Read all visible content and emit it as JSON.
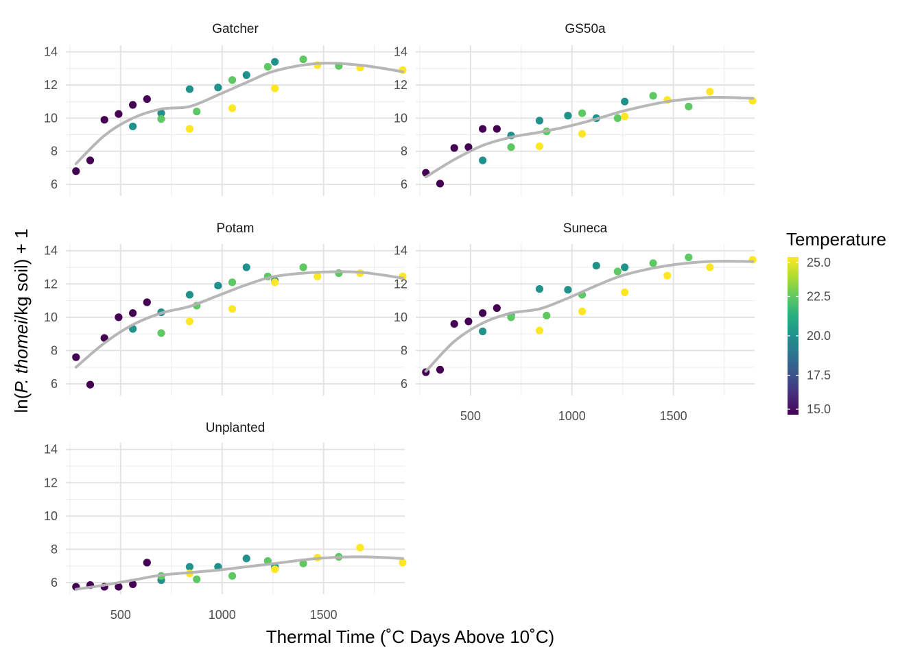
{
  "chart_data": {
    "type": "scatter",
    "facets": [
      "Gatcher",
      "GS50a",
      "Potam",
      "Suneca",
      "Unplanted"
    ],
    "xlabel": "Thermal Time (˚C Days Above 10˚C)",
    "ylabel": {
      "prefix": "ln(",
      "italic": "P. thomei",
      "suffix": "/kg soil) + 1"
    },
    "x_ticks": [
      500,
      1000,
      1500
    ],
    "x_tick_labels": [
      "500",
      "1000",
      "1500"
    ],
    "y_ticks": [
      6,
      8,
      10,
      12,
      14
    ],
    "y_tick_labels": [
      "6",
      "8",
      "10",
      "12",
      "14"
    ],
    "xlim": [
      230,
      1900
    ],
    "ylim": [
      5.3,
      14.4
    ],
    "grid": true,
    "legend": {
      "title": "Temperature",
      "position": "right",
      "range": [
        15,
        25
      ],
      "ticks": [
        15,
        17.5,
        20,
        22.5,
        25
      ],
      "tick_labels": [
        "15.0",
        "17.5",
        "20.0",
        "22.5",
        "25.0"
      ],
      "colors": [
        "#440154",
        "#472d7b",
        "#3b528b",
        "#2c728e",
        "#21918c",
        "#28ae80",
        "#5ec962",
        "#addc30",
        "#fde725"
      ]
    },
    "smooth_color": "#b3b3b3",
    "panels": [
      {
        "name": "Gatcher",
        "points": [
          {
            "x": 280,
            "y": 6.8,
            "t": 15
          },
          {
            "x": 350,
            "y": 7.45,
            "t": 15
          },
          {
            "x": 420,
            "y": 9.9,
            "t": 15
          },
          {
            "x": 490,
            "y": 10.25,
            "t": 15
          },
          {
            "x": 560,
            "y": 10.8,
            "t": 15
          },
          {
            "x": 630,
            "y": 11.15,
            "t": 15
          },
          {
            "x": 560,
            "y": 9.5,
            "t": 20
          },
          {
            "x": 700,
            "y": 10.3,
            "t": 20
          },
          {
            "x": 840,
            "y": 11.75,
            "t": 20
          },
          {
            "x": 980,
            "y": 11.85,
            "t": 20
          },
          {
            "x": 1120,
            "y": 12.6,
            "t": 20
          },
          {
            "x": 1260,
            "y": 13.4,
            "t": 20
          },
          {
            "x": 700,
            "y": 9.95,
            "t": 22.5
          },
          {
            "x": 875,
            "y": 10.4,
            "t": 22.5
          },
          {
            "x": 1050,
            "y": 12.3,
            "t": 22.5
          },
          {
            "x": 1225,
            "y": 13.1,
            "t": 22.5
          },
          {
            "x": 1400,
            "y": 13.55,
            "t": 22.5
          },
          {
            "x": 1575,
            "y": 13.15,
            "t": 22.5
          },
          {
            "x": 840,
            "y": 9.35,
            "t": 25
          },
          {
            "x": 1050,
            "y": 10.6,
            "t": 25
          },
          {
            "x": 1260,
            "y": 11.8,
            "t": 25
          },
          {
            "x": 1470,
            "y": 13.2,
            "t": 25
          },
          {
            "x": 1680,
            "y": 13.05,
            "t": 25
          },
          {
            "x": 1890,
            "y": 12.9,
            "t": 25
          }
        ],
        "smooth": [
          [
            280,
            7.25
          ],
          [
            420,
            8.95
          ],
          [
            560,
            10.0
          ],
          [
            700,
            10.55
          ],
          [
            840,
            10.7
          ],
          [
            980,
            11.4
          ],
          [
            1120,
            12.15
          ],
          [
            1260,
            12.85
          ],
          [
            1470,
            13.3
          ],
          [
            1680,
            13.2
          ],
          [
            1890,
            12.8
          ]
        ]
      },
      {
        "name": "GS50a",
        "points": [
          {
            "x": 280,
            "y": 6.7,
            "t": 15
          },
          {
            "x": 350,
            "y": 6.05,
            "t": 15
          },
          {
            "x": 420,
            "y": 8.2,
            "t": 15
          },
          {
            "x": 490,
            "y": 8.25,
            "t": 15
          },
          {
            "x": 560,
            "y": 9.35,
            "t": 15
          },
          {
            "x": 630,
            "y": 9.35,
            "t": 15
          },
          {
            "x": 560,
            "y": 7.45,
            "t": 20
          },
          {
            "x": 700,
            "y": 8.95,
            "t": 20
          },
          {
            "x": 840,
            "y": 9.85,
            "t": 20
          },
          {
            "x": 980,
            "y": 10.15,
            "t": 20
          },
          {
            "x": 1120,
            "y": 10.0,
            "t": 20
          },
          {
            "x": 1260,
            "y": 11.0,
            "t": 20
          },
          {
            "x": 700,
            "y": 8.25,
            "t": 22.5
          },
          {
            "x": 875,
            "y": 9.2,
            "t": 22.5
          },
          {
            "x": 1050,
            "y": 10.3,
            "t": 22.5
          },
          {
            "x": 1225,
            "y": 10.0,
            "t": 22.5
          },
          {
            "x": 1400,
            "y": 11.35,
            "t": 22.5
          },
          {
            "x": 1575,
            "y": 10.7,
            "t": 22.5
          },
          {
            "x": 840,
            "y": 8.3,
            "t": 25
          },
          {
            "x": 1050,
            "y": 9.05,
            "t": 25
          },
          {
            "x": 1260,
            "y": 10.1,
            "t": 25
          },
          {
            "x": 1470,
            "y": 11.1,
            "t": 25
          },
          {
            "x": 1680,
            "y": 11.6,
            "t": 25
          },
          {
            "x": 1890,
            "y": 11.05,
            "t": 25
          }
        ],
        "smooth": [
          [
            280,
            6.45
          ],
          [
            420,
            7.5
          ],
          [
            560,
            8.35
          ],
          [
            700,
            8.85
          ],
          [
            840,
            9.15
          ],
          [
            980,
            9.5
          ],
          [
            1120,
            9.95
          ],
          [
            1260,
            10.45
          ],
          [
            1470,
            11.0
          ],
          [
            1680,
            11.25
          ],
          [
            1890,
            11.2
          ]
        ]
      },
      {
        "name": "Potam",
        "points": [
          {
            "x": 280,
            "y": 7.6,
            "t": 15
          },
          {
            "x": 350,
            "y": 5.95,
            "t": 15
          },
          {
            "x": 420,
            "y": 8.75,
            "t": 15
          },
          {
            "x": 490,
            "y": 10.0,
            "t": 15
          },
          {
            "x": 560,
            "y": 10.25,
            "t": 15
          },
          {
            "x": 630,
            "y": 10.9,
            "t": 15
          },
          {
            "x": 560,
            "y": 9.3,
            "t": 20
          },
          {
            "x": 700,
            "y": 10.3,
            "t": 20
          },
          {
            "x": 840,
            "y": 11.35,
            "t": 20
          },
          {
            "x": 980,
            "y": 11.9,
            "t": 20
          },
          {
            "x": 1120,
            "y": 13.0,
            "t": 20
          },
          {
            "x": 1260,
            "y": 12.2,
            "t": 20
          },
          {
            "x": 700,
            "y": 9.05,
            "t": 22.5
          },
          {
            "x": 875,
            "y": 10.7,
            "t": 22.5
          },
          {
            "x": 1050,
            "y": 12.1,
            "t": 22.5
          },
          {
            "x": 1225,
            "y": 12.45,
            "t": 22.5
          },
          {
            "x": 1400,
            "y": 13.0,
            "t": 22.5
          },
          {
            "x": 1575,
            "y": 12.65,
            "t": 22.5
          },
          {
            "x": 840,
            "y": 9.75,
            "t": 25
          },
          {
            "x": 1050,
            "y": 10.5,
            "t": 25
          },
          {
            "x": 1260,
            "y": 12.1,
            "t": 25
          },
          {
            "x": 1470,
            "y": 12.45,
            "t": 25
          },
          {
            "x": 1680,
            "y": 12.65,
            "t": 25
          },
          {
            "x": 1890,
            "y": 12.45,
            "t": 25
          }
        ],
        "smooth": [
          [
            280,
            7.0
          ],
          [
            420,
            8.45
          ],
          [
            560,
            9.55
          ],
          [
            700,
            10.25
          ],
          [
            840,
            10.65
          ],
          [
            980,
            11.3
          ],
          [
            1120,
            11.95
          ],
          [
            1260,
            12.45
          ],
          [
            1470,
            12.7
          ],
          [
            1680,
            12.7
          ],
          [
            1890,
            12.35
          ]
        ]
      },
      {
        "name": "Suneca",
        "points": [
          {
            "x": 280,
            "y": 6.7,
            "t": 15
          },
          {
            "x": 350,
            "y": 6.85,
            "t": 15
          },
          {
            "x": 420,
            "y": 9.6,
            "t": 15
          },
          {
            "x": 490,
            "y": 9.75,
            "t": 15
          },
          {
            "x": 560,
            "y": 10.25,
            "t": 15
          },
          {
            "x": 630,
            "y": 10.55,
            "t": 15
          },
          {
            "x": 560,
            "y": 9.15,
            "t": 20
          },
          {
            "x": 700,
            "y": 10.1,
            "t": 20
          },
          {
            "x": 840,
            "y": 11.7,
            "t": 20
          },
          {
            "x": 980,
            "y": 11.65,
            "t": 20
          },
          {
            "x": 1120,
            "y": 13.1,
            "t": 20
          },
          {
            "x": 1260,
            "y": 13.0,
            "t": 20
          },
          {
            "x": 700,
            "y": 10.0,
            "t": 22.5
          },
          {
            "x": 875,
            "y": 10.1,
            "t": 22.5
          },
          {
            "x": 1050,
            "y": 11.35,
            "t": 22.5
          },
          {
            "x": 1225,
            "y": 12.75,
            "t": 22.5
          },
          {
            "x": 1400,
            "y": 13.25,
            "t": 22.5
          },
          {
            "x": 1575,
            "y": 13.6,
            "t": 22.5
          },
          {
            "x": 840,
            "y": 9.2,
            "t": 25
          },
          {
            "x": 1050,
            "y": 10.35,
            "t": 25
          },
          {
            "x": 1260,
            "y": 11.5,
            "t": 25
          },
          {
            "x": 1470,
            "y": 12.5,
            "t": 25
          },
          {
            "x": 1680,
            "y": 13.0,
            "t": 25
          },
          {
            "x": 1890,
            "y": 13.45,
            "t": 25
          }
        ],
        "smooth": [
          [
            280,
            6.75
          ],
          [
            420,
            8.55
          ],
          [
            560,
            9.65
          ],
          [
            700,
            10.25
          ],
          [
            840,
            10.5
          ],
          [
            980,
            11.15
          ],
          [
            1120,
            11.9
          ],
          [
            1260,
            12.55
          ],
          [
            1470,
            13.1
          ],
          [
            1680,
            13.35
          ],
          [
            1890,
            13.35
          ]
        ]
      },
      {
        "name": "Unplanted",
        "points": [
          {
            "x": 280,
            "y": 5.75,
            "t": 15
          },
          {
            "x": 350,
            "y": 5.85,
            "t": 15
          },
          {
            "x": 420,
            "y": 5.75,
            "t": 15
          },
          {
            "x": 490,
            "y": 5.75,
            "t": 15
          },
          {
            "x": 560,
            "y": 5.9,
            "t": 15
          },
          {
            "x": 630,
            "y": 7.2,
            "t": 15
          },
          {
            "x": 700,
            "y": 6.15,
            "t": 20
          },
          {
            "x": 840,
            "y": 6.95,
            "t": 20
          },
          {
            "x": 980,
            "y": 6.95,
            "t": 20
          },
          {
            "x": 1120,
            "y": 7.45,
            "t": 20
          },
          {
            "x": 1260,
            "y": 6.95,
            "t": 20
          },
          {
            "x": 700,
            "y": 6.4,
            "t": 22.5
          },
          {
            "x": 875,
            "y": 6.2,
            "t": 22.5
          },
          {
            "x": 1050,
            "y": 6.4,
            "t": 22.5
          },
          {
            "x": 1225,
            "y": 7.3,
            "t": 22.5
          },
          {
            "x": 1400,
            "y": 7.15,
            "t": 22.5
          },
          {
            "x": 1575,
            "y": 7.55,
            "t": 22.5
          },
          {
            "x": 840,
            "y": 6.55,
            "t": 25
          },
          {
            "x": 1260,
            "y": 6.8,
            "t": 25
          },
          {
            "x": 1470,
            "y": 7.5,
            "t": 25
          },
          {
            "x": 1680,
            "y": 8.1,
            "t": 25
          },
          {
            "x": 1890,
            "y": 7.2,
            "t": 25
          }
        ],
        "smooth": [
          [
            280,
            5.6
          ],
          [
            420,
            5.85
          ],
          [
            560,
            6.15
          ],
          [
            700,
            6.45
          ],
          [
            840,
            6.6
          ],
          [
            980,
            6.75
          ],
          [
            1120,
            6.95
          ],
          [
            1260,
            7.15
          ],
          [
            1470,
            7.45
          ],
          [
            1680,
            7.55
          ],
          [
            1890,
            7.45
          ]
        ]
      }
    ]
  }
}
